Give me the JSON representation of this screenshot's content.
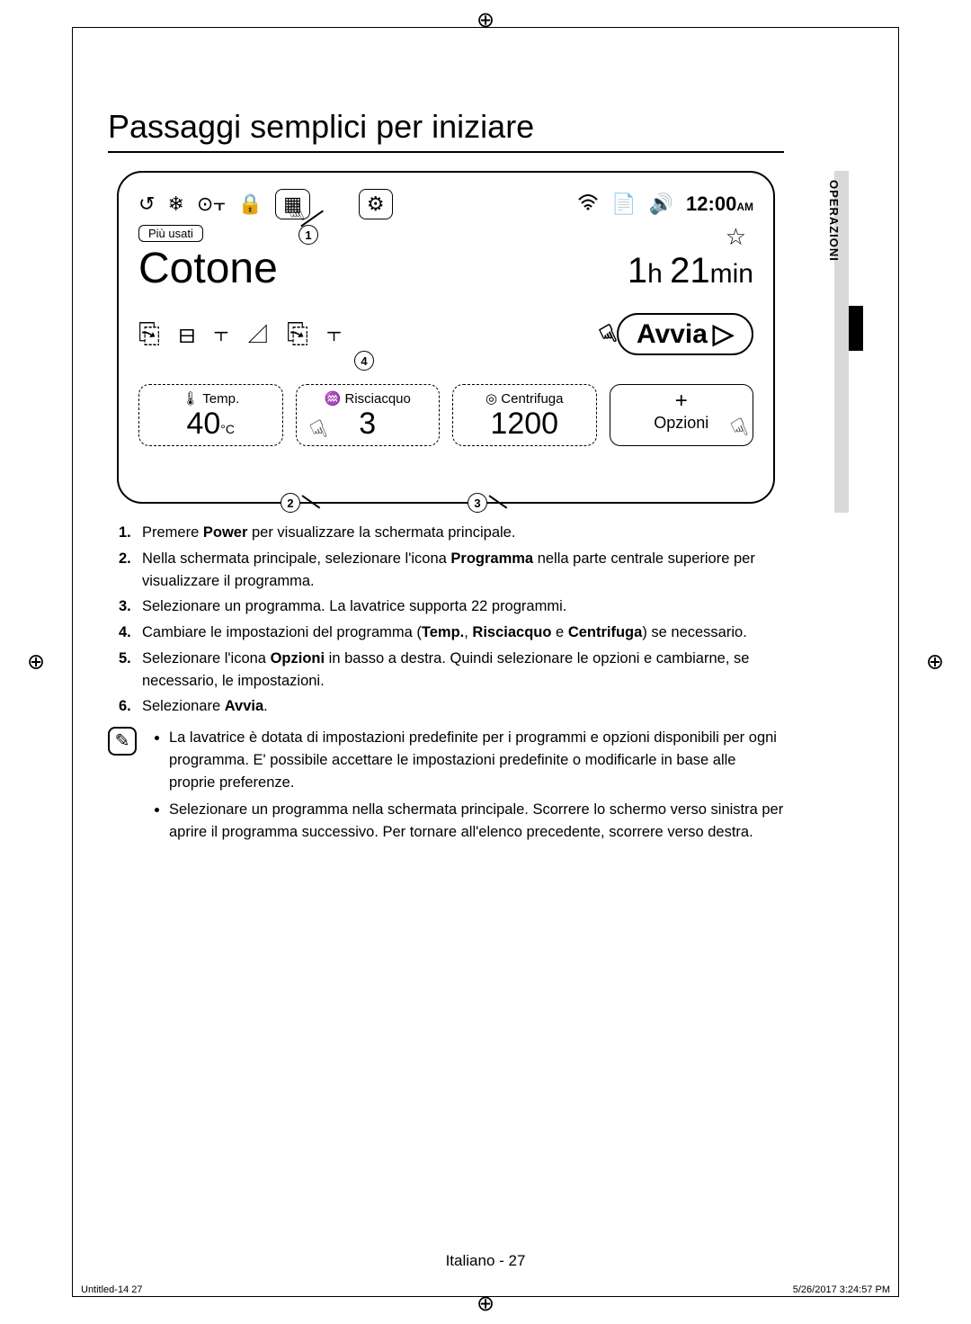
{
  "crop_glyph": "⊕",
  "page_title": "Passaggi semplici per iniziare",
  "side_tab_label": "OPERAZIONI",
  "display": {
    "top_icons": [
      "↺",
      "❄",
      "⊙⫟",
      "🔒"
    ],
    "program_icon_boxed": "▦",
    "settings_icon_boxed": "⚙",
    "status_icons": [
      "⫞",
      "📄",
      "🔊"
    ],
    "wifi_icon": "⫞",
    "time": "12:00",
    "ampm": "AM",
    "piu_usati": "Più usati",
    "star": "☆",
    "program_name": "Cotone",
    "duration_h": "1",
    "duration_h_unit": "h",
    "duration_m": "21",
    "duration_m_unit": "min",
    "wash_symbols": "⎘ ⊟ ⫟ ◿ ⎘ ⫟",
    "start_label": "Avvia",
    "start_glyph": "▷",
    "temp": {
      "label": "Temp.",
      "value": "40",
      "unit": "°C",
      "icon": "🌡"
    },
    "rinse": {
      "label": "Risciacquo",
      "value": "3",
      "icon": "♒"
    },
    "spin": {
      "label": "Centrifuga",
      "value": "1200",
      "icon": "◎"
    },
    "options": {
      "plus": "+",
      "label": "Opzioni"
    },
    "callouts": {
      "c1": "1",
      "c2": "2",
      "c3": "3",
      "c4": "4"
    },
    "tap_glyph": "☟"
  },
  "steps": [
    {
      "num": "1.",
      "html": "Premere <b>Power</b> per visualizzare la schermata principale."
    },
    {
      "num": "2.",
      "html": "Nella schermata principale, selezionare l'icona <b>Programma</b> nella parte centrale superiore per visualizzare il programma."
    },
    {
      "num": "3.",
      "html": "Selezionare un programma. La lavatrice supporta 22 programmi."
    },
    {
      "num": "4.",
      "html": "Cambiare le impostazioni del programma (<b>Temp.</b>, <b>Risciacquo</b> e <b>Centrifuga</b>) se necessario."
    },
    {
      "num": "5.",
      "html": "Selezionare l'icona <b>Opzioni</b> in basso a destra. Quindi selezionare le opzioni e cambiarne, se necessario, le impostazioni."
    },
    {
      "num": "6.",
      "html": "Selezionare <b>Avvia</b>."
    }
  ],
  "note_icon": "✎",
  "notes": [
    "La lavatrice è dotata di impostazioni predefinite per i programmi e opzioni disponibili per ogni programma. E' possibile accettare le impostazioni predefinite o modificarle in base alle proprie preferenze.",
    "Selezionare un programma nella schermata principale. Scorrere lo schermo verso sinistra per aprire il programma successivo. Per tornare all'elenco precedente, scorrere verso destra."
  ],
  "footer_center": "Italiano - 27",
  "footer_left": "Untitled-14   27",
  "footer_right": "5/26/2017   3:24:57 PM"
}
